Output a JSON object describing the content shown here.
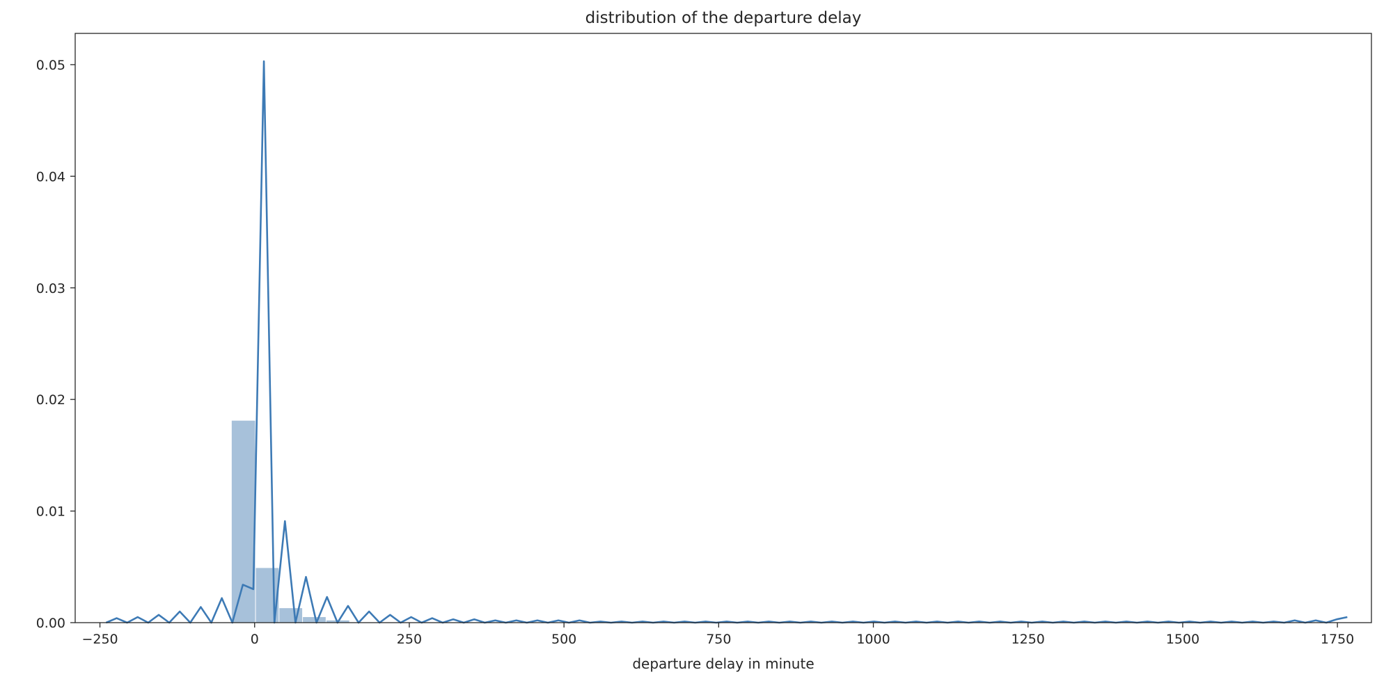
{
  "chart_data": {
    "type": "histogram",
    "title": "distribution of the departure delay",
    "xlabel": "departure delay in minute",
    "ylabel": "",
    "xlim": [
      -290,
      1805
    ],
    "ylim": [
      0,
      0.0528
    ],
    "grid": false,
    "x_ticks": [
      {
        "value": -250,
        "label": "−250"
      },
      {
        "value": 0,
        "label": "0"
      },
      {
        "value": 250,
        "label": "250"
      },
      {
        "value": 500,
        "label": "500"
      },
      {
        "value": 750,
        "label": "750"
      },
      {
        "value": 1000,
        "label": "1000"
      },
      {
        "value": 1250,
        "label": "1250"
      },
      {
        "value": 1500,
        "label": "1500"
      },
      {
        "value": 1750,
        "label": "1750"
      }
    ],
    "y_ticks": [
      {
        "value": 0,
        "label": "0.00"
      },
      {
        "value": 0.01,
        "label": "0.01"
      },
      {
        "value": 0.02,
        "label": "0.02"
      },
      {
        "value": 0.03,
        "label": "0.03"
      },
      {
        "value": 0.04,
        "label": "0.04"
      },
      {
        "value": 0.05,
        "label": "0.05"
      }
    ],
    "bars": [
      {
        "x0": -37,
        "x1": 2,
        "value": 0.0181
      },
      {
        "x0": 2,
        "x1": 40,
        "value": 0.0049
      },
      {
        "x0": 40,
        "x1": 78,
        "value": 0.0013
      },
      {
        "x0": 78,
        "x1": 116,
        "value": 0.0005
      },
      {
        "x0": 116,
        "x1": 154,
        "value": 0.0002
      }
    ],
    "series": [
      {
        "x": [
          -240,
          -223,
          -206,
          -189,
          -172,
          -155,
          -138,
          -121,
          -104,
          -87,
          -70,
          -53,
          -36,
          -19,
          -2,
          15,
          32,
          49,
          66,
          83,
          100,
          117,
          134,
          151,
          168,
          185,
          202,
          219,
          236,
          253,
          270,
          287,
          304,
          321,
          338,
          355,
          372,
          389,
          406,
          423,
          440,
          457,
          474,
          491,
          508,
          525,
          542,
          559,
          576,
          593,
          610,
          627,
          644,
          661,
          678,
          695,
          712,
          729,
          746,
          763,
          780,
          797,
          814,
          831,
          848,
          865,
          882,
          899,
          916,
          933,
          950,
          967,
          984,
          1001,
          1018,
          1035,
          1052,
          1069,
          1086,
          1103,
          1120,
          1137,
          1154,
          1171,
          1188,
          1205,
          1222,
          1239,
          1256,
          1273,
          1290,
          1307,
          1324,
          1341,
          1358,
          1375,
          1392,
          1409,
          1426,
          1443,
          1460,
          1477,
          1494,
          1511,
          1528,
          1545,
          1562,
          1579,
          1596,
          1613,
          1630,
          1647,
          1664,
          1681,
          1698,
          1715,
          1732,
          1749,
          1766
        ],
        "y": [
          0.0,
          0.0004,
          0.0,
          0.0005,
          0.0,
          0.0007,
          0.0,
          0.001,
          0.0,
          0.0014,
          0.0,
          0.0022,
          0.0,
          0.0034,
          0.003,
          0.0503,
          0.0,
          0.0091,
          0.0,
          0.0041,
          0.0,
          0.0023,
          0.0,
          0.0015,
          0.0,
          0.001,
          0.0,
          0.0007,
          0.0,
          0.0005,
          0.0,
          0.0004,
          0.0,
          0.0003,
          0.0,
          0.0003,
          0.0,
          0.0002,
          0.0,
          0.0002,
          0.0,
          0.0002,
          0.0,
          0.0002,
          0.0,
          0.0002,
          0.0,
          0.0001,
          0.0,
          0.0001,
          0.0,
          0.0001,
          0.0,
          0.0001,
          0.0,
          0.0001,
          0.0,
          0.0001,
          0.0,
          0.0001,
          0.0,
          0.0001,
          0.0,
          0.0001,
          0.0,
          0.0001,
          0.0,
          0.0001,
          0.0,
          0.0001,
          0.0,
          0.0001,
          0.0,
          0.0001,
          0.0,
          0.0001,
          0.0,
          0.0001,
          0.0,
          0.0001,
          0.0,
          0.0001,
          0.0,
          0.0001,
          0.0,
          0.0001,
          0.0,
          0.0001,
          0.0,
          0.0001,
          0.0,
          0.0001,
          0.0,
          0.0001,
          0.0,
          0.0001,
          0.0,
          0.0001,
          0.0,
          0.0001,
          0.0,
          0.0001,
          0.0,
          0.0001,
          0.0,
          0.0001,
          0.0,
          0.0001,
          0.0,
          0.0001,
          0.0,
          0.0001,
          0.0,
          0.0002,
          0.0,
          0.0002,
          0.0,
          0.0003,
          0.0005
        ]
      }
    ],
    "colors": {
      "bar_fill": "#a7c1da",
      "line": "#3d7ab5",
      "axis": "#262626",
      "background": "#ffffff"
    }
  }
}
